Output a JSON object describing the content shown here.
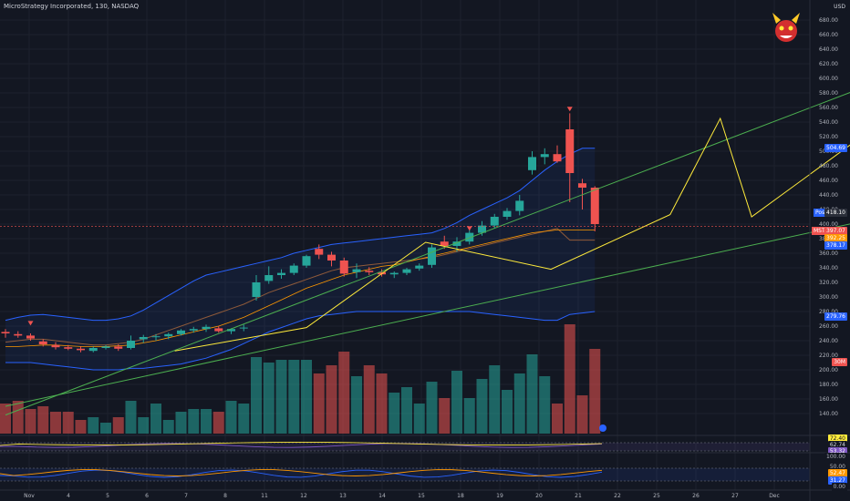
{
  "header": {
    "symbol_title": "MicroStrategy Incorporated, 130, NASDAQ",
    "currency": "USD"
  },
  "colors": {
    "background": "#131722",
    "up": "#26a69a",
    "down": "#ef5350",
    "band": "#2962ff",
    "trend_green": "#4caf50",
    "pattern_yellow": "#ffeb3b",
    "ma_orange": "#ff9800"
  },
  "price_labels": [
    "680.00",
    "660.00",
    "640.00",
    "620.00",
    "600.00",
    "580.00",
    "560.00",
    "540.00",
    "520.00",
    "500.00",
    "480.00",
    "460.00",
    "440.00",
    "420.00",
    "400.00",
    "380.00",
    "360.00",
    "340.00",
    "320.00",
    "300.00",
    "280.00",
    "260.00",
    "240.00",
    "220.00",
    "200.00",
    "180.00",
    "160.00",
    "140.00"
  ],
  "tags": {
    "upper_band": "504.69",
    "post_label": "Post",
    "post_value": "418.10",
    "symbol": "MSTR",
    "last_price": "397.07",
    "ma_value": "392.25",
    "mid_band": "378.17",
    "lower_band": "279.76",
    "volume": "30M",
    "rsi_1": "72.40",
    "rsi_2": "62.74",
    "rsi_3": "53.32",
    "osc_top": "100.00",
    "osc_mid": "50.00",
    "osc_1": "52.47",
    "osc_2": "31.27",
    "osc_bottom": "0.00"
  },
  "time_labels": [
    "Nov",
    "4",
    "5",
    "6",
    "7",
    "8",
    "11",
    "12",
    "13",
    "14",
    "15",
    "18",
    "19",
    "20",
    "21",
    "22",
    "25",
    "26",
    "27",
    "Dec"
  ],
  "chart_data": {
    "type": "candlestick",
    "title": "MicroStrategy Incorporated, 130, NASDAQ",
    "y_unit": "USD",
    "ylim": [
      120,
      700
    ],
    "candles": [
      {
        "o": 252,
        "h": 256,
        "l": 244,
        "c": 250
      },
      {
        "o": 249,
        "h": 253,
        "l": 244,
        "c": 247
      },
      {
        "o": 247,
        "h": 250,
        "l": 240,
        "c": 243
      },
      {
        "o": 239,
        "h": 242,
        "l": 232,
        "c": 235
      },
      {
        "o": 234,
        "h": 238,
        "l": 228,
        "c": 231
      },
      {
        "o": 231,
        "h": 234,
        "l": 227,
        "c": 229
      },
      {
        "o": 229,
        "h": 232,
        "l": 224,
        "c": 227
      },
      {
        "o": 226,
        "h": 232,
        "l": 224,
        "c": 230
      },
      {
        "o": 230,
        "h": 234,
        "l": 228,
        "c": 232
      },
      {
        "o": 232,
        "h": 235,
        "l": 226,
        "c": 229
      },
      {
        "o": 230,
        "h": 247,
        "l": 228,
        "c": 240
      },
      {
        "o": 242,
        "h": 248,
        "l": 237,
        "c": 245
      },
      {
        "o": 245,
        "h": 249,
        "l": 240,
        "c": 246
      },
      {
        "o": 246,
        "h": 251,
        "l": 242,
        "c": 249
      },
      {
        "o": 249,
        "h": 256,
        "l": 247,
        "c": 254
      },
      {
        "o": 254,
        "h": 259,
        "l": 251,
        "c": 256
      },
      {
        "o": 256,
        "h": 262,
        "l": 252,
        "c": 259
      },
      {
        "o": 257,
        "h": 260,
        "l": 251,
        "c": 253
      },
      {
        "o": 253,
        "h": 257,
        "l": 249,
        "c": 256
      },
      {
        "o": 257,
        "h": 262,
        "l": 253,
        "c": 258
      },
      {
        "o": 300,
        "h": 330,
        "l": 295,
        "c": 320
      },
      {
        "o": 322,
        "h": 342,
        "l": 318,
        "c": 330
      },
      {
        "o": 330,
        "h": 338,
        "l": 325,
        "c": 333
      },
      {
        "o": 333,
        "h": 346,
        "l": 330,
        "c": 343
      },
      {
        "o": 343,
        "h": 358,
        "l": 340,
        "c": 356
      },
      {
        "o": 366,
        "h": 372,
        "l": 352,
        "c": 358
      },
      {
        "o": 358,
        "h": 362,
        "l": 342,
        "c": 350
      },
      {
        "o": 350,
        "h": 354,
        "l": 328,
        "c": 332
      },
      {
        "o": 334,
        "h": 346,
        "l": 326,
        "c": 338
      },
      {
        "o": 336,
        "h": 341,
        "l": 330,
        "c": 334
      },
      {
        "o": 334,
        "h": 338,
        "l": 328,
        "c": 331
      },
      {
        "o": 331,
        "h": 335,
        "l": 326,
        "c": 333
      },
      {
        "o": 333,
        "h": 340,
        "l": 330,
        "c": 338
      },
      {
        "o": 339,
        "h": 346,
        "l": 336,
        "c": 343
      },
      {
        "o": 344,
        "h": 372,
        "l": 340,
        "c": 368
      },
      {
        "o": 376,
        "h": 384,
        "l": 366,
        "c": 370
      },
      {
        "o": 370,
        "h": 382,
        "l": 362,
        "c": 376
      },
      {
        "o": 376,
        "h": 392,
        "l": 372,
        "c": 388
      },
      {
        "o": 388,
        "h": 404,
        "l": 384,
        "c": 398
      },
      {
        "o": 398,
        "h": 414,
        "l": 394,
        "c": 410
      },
      {
        "o": 410,
        "h": 422,
        "l": 406,
        "c": 418
      },
      {
        "o": 418,
        "h": 440,
        "l": 412,
        "c": 432
      },
      {
        "o": 474,
        "h": 500,
        "l": 468,
        "c": 492
      },
      {
        "o": 492,
        "h": 504,
        "l": 482,
        "c": 496
      },
      {
        "o": 496,
        "h": 508,
        "l": 484,
        "c": 486
      },
      {
        "o": 530,
        "h": 552,
        "l": 430,
        "c": 470
      },
      {
        "o": 456,
        "h": 462,
        "l": 420,
        "c": 450
      },
      {
        "o": 450,
        "h": 452,
        "l": 390,
        "c": 400
      }
    ],
    "volume_m": [
      11,
      12,
      9,
      10,
      8,
      8,
      5,
      6,
      4,
      6,
      12,
      6,
      11,
      5,
      8,
      9,
      9,
      8,
      12,
      11,
      28,
      26,
      27,
      27,
      27,
      22,
      25,
      30,
      21,
      25,
      22,
      15,
      17,
      11,
      19,
      13,
      23,
      13,
      20,
      25,
      16,
      22,
      29,
      21,
      11,
      40,
      14,
      31
    ],
    "bollinger": {
      "upper": [
        268,
        272,
        275,
        276,
        274,
        272,
        270,
        268,
        268,
        270,
        274,
        282,
        292,
        302,
        312,
        322,
        330,
        334,
        338,
        342,
        346,
        350,
        354,
        360,
        364,
        368,
        372,
        374,
        376,
        378,
        380,
        382,
        384,
        386,
        388,
        394,
        402,
        412,
        420,
        428,
        436,
        446,
        460,
        474,
        486,
        496,
        504,
        504
      ],
      "middle": [
        238,
        240,
        242,
        242,
        240,
        238,
        236,
        234,
        234,
        236,
        238,
        242,
        248,
        254,
        260,
        266,
        272,
        278,
        284,
        290,
        298,
        306,
        312,
        318,
        324,
        330,
        336,
        340,
        342,
        344,
        346,
        348,
        350,
        352,
        354,
        358,
        362,
        366,
        370,
        374,
        378,
        382,
        386,
        390,
        394,
        378,
        378,
        378
      ],
      "lower": [
        210,
        210,
        210,
        208,
        206,
        204,
        202,
        200,
        200,
        200,
        202,
        202,
        204,
        206,
        208,
        212,
        216,
        222,
        228,
        236,
        244,
        252,
        258,
        264,
        270,
        274,
        276,
        278,
        280,
        280,
        280,
        280,
        280,
        280,
        280,
        280,
        280,
        280,
        278,
        276,
        274,
        272,
        270,
        268,
        268,
        276,
        278,
        280
      ]
    },
    "moving_average": [
      232,
      232,
      233,
      234,
      234,
      233,
      232,
      232,
      232,
      233,
      234,
      237,
      240,
      244,
      248,
      252,
      256,
      260,
      266,
      272,
      280,
      288,
      296,
      304,
      312,
      318,
      324,
      330,
      334,
      338,
      342,
      344,
      348,
      352,
      356,
      360,
      364,
      368,
      372,
      376,
      380,
      384,
      388,
      390,
      392,
      392,
      392,
      392
    ],
    "trend_lines": [
      {
        "from": [
          0,
          138
        ],
        "to": [
          84,
          690
        ],
        "color": "green"
      },
      {
        "from": [
          0,
          150
        ],
        "to": [
          84,
          462
        ],
        "color": "green"
      }
    ],
    "pattern": [
      [
        13.5,
        226
      ],
      [
        24,
        258
      ],
      [
        33.5,
        375
      ],
      [
        43.5,
        338
      ],
      [
        53,
        413
      ],
      [
        57,
        545
      ],
      [
        59.5,
        410
      ],
      [
        78,
        642
      ]
    ],
    "rsi": [
      72.4,
      62.74,
      53.32
    ],
    "oscillator": [
      52.47,
      31.27
    ],
    "oscillator_scale": [
      0,
      50,
      100
    ]
  }
}
